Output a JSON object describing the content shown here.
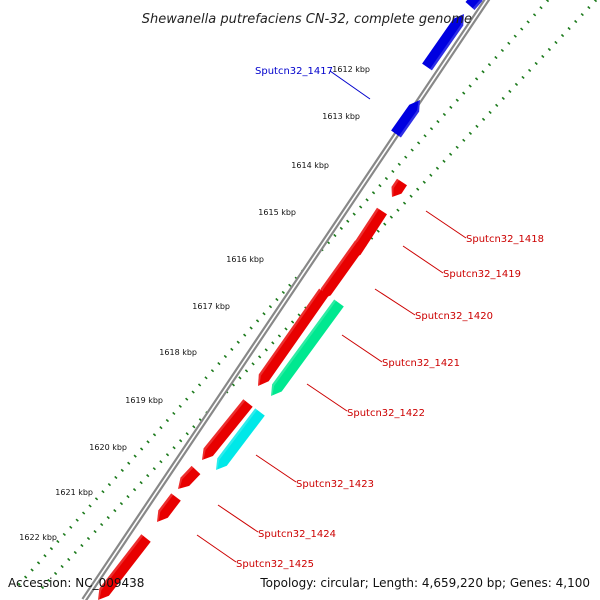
{
  "title": "Shewanella putrefaciens CN-32, complete genome",
  "footer": {
    "accession": "Accession: NC_009438",
    "summary": "Topology: circular; Length: 4,659,220 bp; Genes: 4,100"
  },
  "colors": {
    "forward_cds": "#0000e0",
    "reverse_cds": "#e80000",
    "cyan_cds": "#00e8e8",
    "green_cds": "#00e890",
    "backbone": "#888888",
    "tick": "#1c7a1c",
    "forward_label": "#0000cc",
    "reverse_label": "#cc0000"
  },
  "ticks": [
    "1612 kbp",
    "1613 kbp",
    "1614 kbp",
    "1615 kbp",
    "1616 kbp",
    "1617 kbp",
    "1618 kbp",
    "1619 kbp",
    "1620 kbp",
    "1621 kbp",
    "1622 kbp"
  ],
  "genes": [
    {
      "label": "Sputcn32_1417",
      "color": "forward"
    },
    {
      "label": "Sputcn32_1418",
      "color": "reverse"
    },
    {
      "label": "Sputcn32_1419",
      "color": "reverse"
    },
    {
      "label": "Sputcn32_1420",
      "color": "reverse"
    },
    {
      "label": "Sputcn32_1421",
      "color": "reverse"
    },
    {
      "label": "Sputcn32_1422",
      "color": "reverse"
    },
    {
      "label": "Sputcn32_1423",
      "color": "reverse"
    },
    {
      "label": "Sputcn32_1424",
      "color": "reverse"
    },
    {
      "label": "Sputcn32_1425",
      "color": "reverse"
    }
  ]
}
